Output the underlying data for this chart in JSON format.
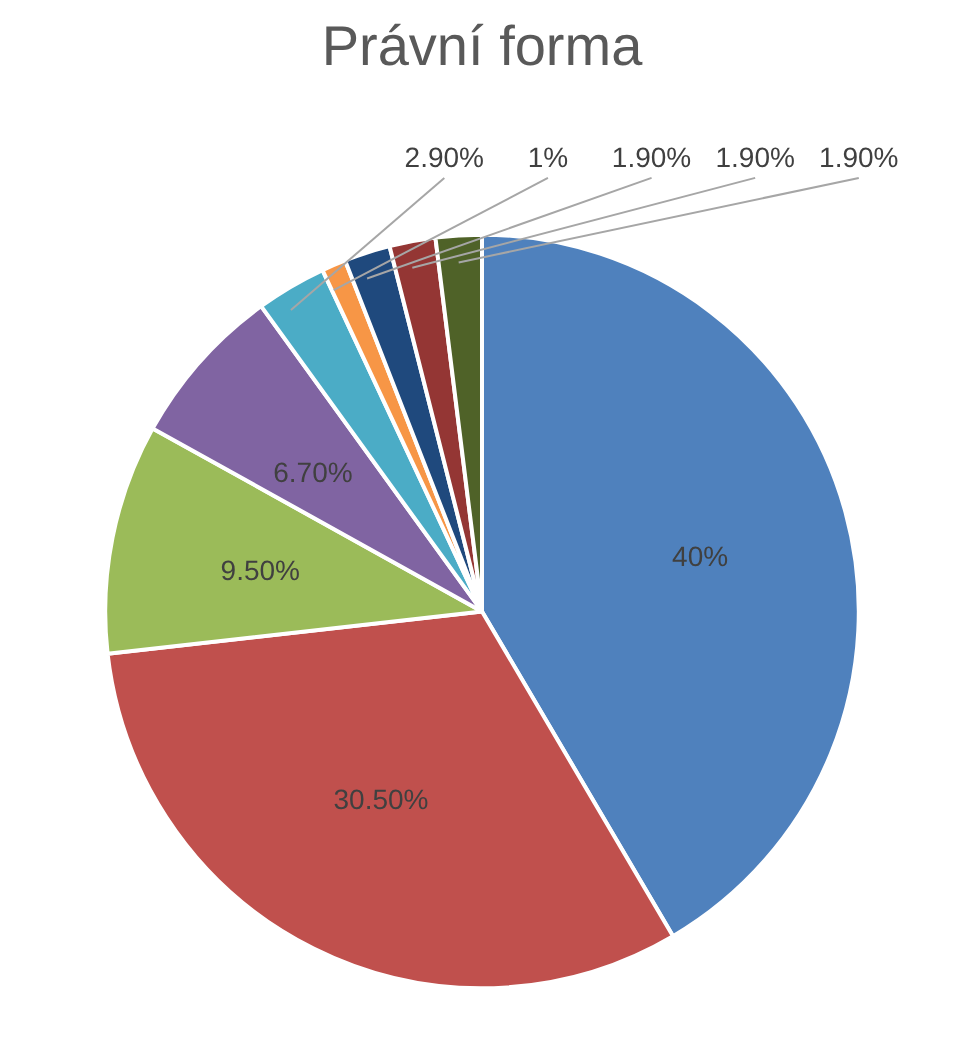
{
  "chart_data": {
    "type": "pie",
    "title": "Právní forma",
    "categories": [
      null,
      null,
      null,
      null,
      null,
      null,
      null,
      null,
      null
    ],
    "values": [
      40,
      30.5,
      9.5,
      6.7,
      2.9,
      1,
      1.9,
      1.9,
      1.9
    ],
    "colors": [
      "#4f81bd",
      "#c0504d",
      "#9bbb59",
      "#8064a2",
      "#4bacc6",
      "#f79646",
      "#1f497d",
      "#943634",
      "#4f6228"
    ],
    "value_labels": [
      "40%",
      "30.50%",
      "9.50%",
      "6.70%",
      "2.90%",
      "1%",
      "1.90%",
      "1.90%",
      "1.90%"
    ]
  }
}
